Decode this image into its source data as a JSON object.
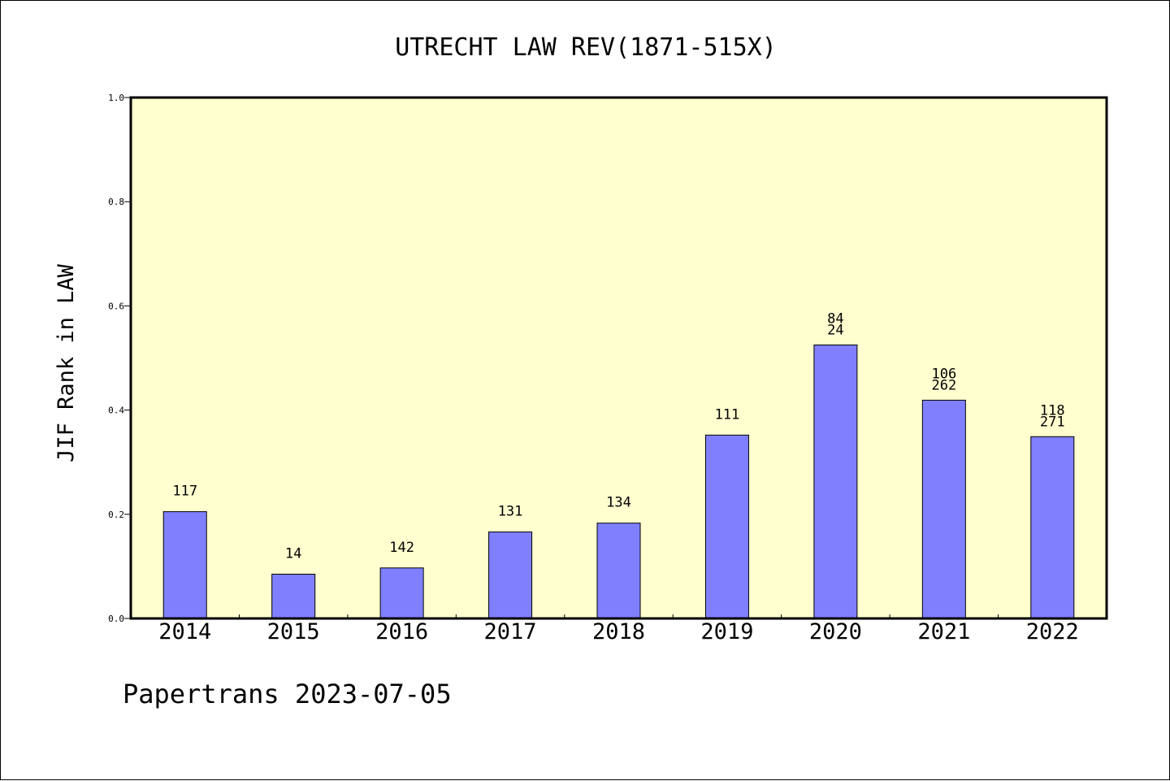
{
  "chart_data": {
    "type": "bar",
    "title": "UTRECHT LAW REV(1871-515X)",
    "xlabel": "",
    "ylabel": "JIF Rank in LAW",
    "ylim": [
      0.0,
      1.0
    ],
    "yticks": [
      "0.0",
      "0.2",
      "0.4",
      "0.6",
      "0.8",
      "1.0"
    ],
    "categories": [
      "2014",
      "2015",
      "2016",
      "2017",
      "2018",
      "2019",
      "2020",
      "2021",
      "2022"
    ],
    "values": [
      0.205,
      0.085,
      0.097,
      0.166,
      0.183,
      0.352,
      0.525,
      0.419,
      0.349
    ],
    "bar_labels": [
      [
        "117"
      ],
      [
        "14"
      ],
      [
        "142"
      ],
      [
        "131"
      ],
      [
        "134"
      ],
      [
        "111"
      ],
      [
        "84",
        "24"
      ],
      [
        "106",
        "262"
      ],
      [
        "118",
        "271"
      ]
    ],
    "colors": {
      "bar": "#8080ff",
      "plot_background": "#ffffd0",
      "axis": "#000000"
    },
    "grid": false,
    "legend": "none"
  },
  "footer": {
    "watermark": "Papertrans 2023-07-05"
  }
}
